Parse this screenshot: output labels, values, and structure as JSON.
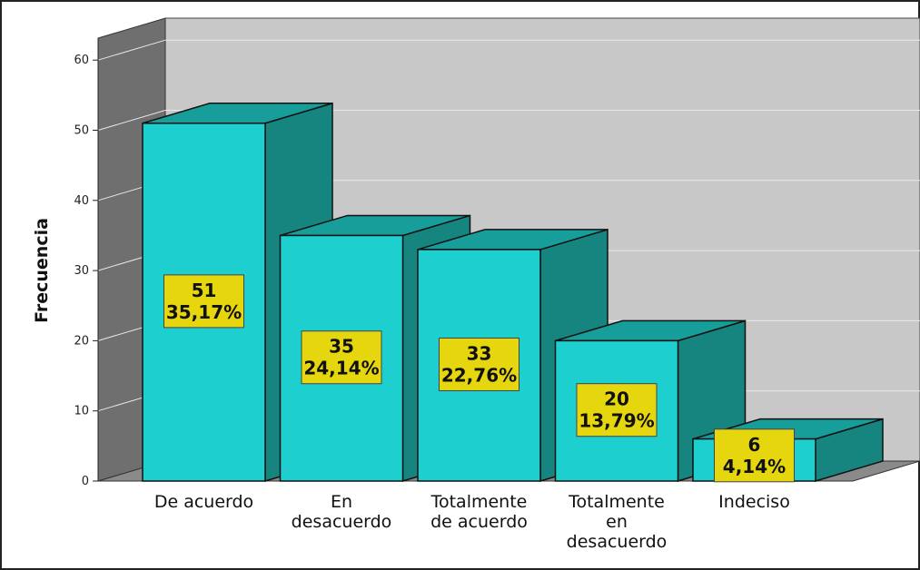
{
  "chart_data": {
    "type": "bar",
    "three_d": true,
    "categories": [
      [
        "De acuerdo"
      ],
      [
        "En",
        "desacuerdo"
      ],
      [
        "Totalmente",
        "de acuerdo"
      ],
      [
        "Totalmente",
        "en",
        "desacuerdo"
      ],
      [
        "Indeciso"
      ]
    ],
    "values": [
      51,
      35,
      33,
      20,
      6
    ],
    "percent_labels": [
      "35,17%",
      "24,14%",
      "22,76%",
      "13,79%",
      "4,14%"
    ],
    "ylabel": "Frecuencia",
    "xlabel": "",
    "ylim": [
      0,
      60
    ],
    "yticks": [
      0,
      10,
      20,
      30,
      40,
      50,
      60
    ],
    "grid": true,
    "legend": "none",
    "colors": {
      "bar_front": "#1ecfcf",
      "bar_top": "#179e9a",
      "bar_side": "#168580",
      "back_wall": "#c8c8c8",
      "left_wall": "#6f6f6f",
      "floor": "#8a8a8a",
      "label_box": "#e6d60d",
      "gridline": "#e8e8e8"
    }
  }
}
